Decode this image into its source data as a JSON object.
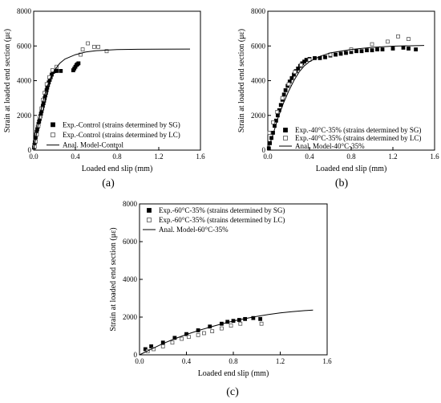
{
  "chart_data": [
    {
      "type": "scatter",
      "panel_label": "(a)",
      "xlabel": "Loaded end slip (mm)",
      "ylabel": "Strain at loaded end section (με)",
      "xlim": [
        0,
        1.6
      ],
      "ylim": [
        0,
        8000
      ],
      "x_ticks": [
        "0.0",
        "0.4",
        "0.8",
        "1.2",
        "1.6"
      ],
      "y_ticks": [
        "0",
        "2000",
        "4000",
        "6000",
        "8000"
      ],
      "legend_position": "bottom-right",
      "series": [
        {
          "name": "Exp.-Control (strains determined by SG)",
          "marker": "filled-square",
          "points": [
            [
              0.003,
              150
            ],
            [
              0.007,
              300
            ],
            [
              0.011,
              450
            ],
            [
              0.015,
              600
            ],
            [
              0.019,
              750
            ],
            [
              0.024,
              900
            ],
            [
              0.029,
              1050
            ],
            [
              0.034,
              1200
            ],
            [
              0.04,
              1350
            ],
            [
              0.046,
              1500
            ],
            [
              0.052,
              1650
            ],
            [
              0.058,
              1800
            ],
            [
              0.064,
              1950
            ],
            [
              0.07,
              2100
            ],
            [
              0.076,
              2250
            ],
            [
              0.082,
              2400
            ],
            [
              0.088,
              2550
            ],
            [
              0.094,
              2700
            ],
            [
              0.1,
              2850
            ],
            [
              0.106,
              3000
            ],
            [
              0.112,
              3150
            ],
            [
              0.118,
              3300
            ],
            [
              0.124,
              3450
            ],
            [
              0.13,
              3600
            ],
            [
              0.137,
              3750
            ],
            [
              0.145,
              3900
            ],
            [
              0.154,
              4050
            ],
            [
              0.163,
              4200
            ],
            [
              0.173,
              4350
            ],
            [
              0.185,
              4500
            ],
            [
              0.2,
              4550
            ],
            [
              0.22,
              4560
            ],
            [
              0.26,
              4560
            ],
            [
              0.38,
              4600
            ],
            [
              0.39,
              4700
            ],
            [
              0.4,
              4800
            ],
            [
              0.41,
              4900
            ],
            [
              0.42,
              4950
            ],
            [
              0.43,
              5000
            ]
          ]
        },
        {
          "name": "Exp.-Control (strains determined by LC)",
          "marker": "open-square",
          "points": [
            [
              0.01,
              200
            ],
            [
              0.02,
              500
            ],
            [
              0.03,
              900
            ],
            [
              0.045,
              1400
            ],
            [
              0.06,
              1900
            ],
            [
              0.075,
              2400
            ],
            [
              0.09,
              2900
            ],
            [
              0.105,
              3300
            ],
            [
              0.125,
              3800
            ],
            [
              0.15,
              4200
            ],
            [
              0.18,
              4600
            ],
            [
              0.22,
              4800
            ],
            [
              0.45,
              5500
            ],
            [
              0.47,
              5800
            ],
            [
              0.52,
              6150
            ],
            [
              0.58,
              5950
            ],
            [
              0.62,
              5950
            ],
            [
              0.7,
              5700
            ]
          ]
        },
        {
          "name": "Anal. Model-Control",
          "marker": "line",
          "points": [
            [
              0,
              0
            ],
            [
              0.02,
              700
            ],
            [
              0.05,
              1700
            ],
            [
              0.08,
              2600
            ],
            [
              0.12,
              3500
            ],
            [
              0.16,
              4150
            ],
            [
              0.2,
              4600
            ],
            [
              0.25,
              5000
            ],
            [
              0.3,
              5250
            ],
            [
              0.4,
              5500
            ],
            [
              0.5,
              5650
            ],
            [
              0.6,
              5730
            ],
            [
              0.8,
              5790
            ],
            [
              1.0,
              5810
            ],
            [
              1.2,
              5815
            ],
            [
              1.5,
              5820
            ]
          ]
        }
      ]
    },
    {
      "type": "scatter",
      "panel_label": "(b)",
      "xlabel": "Loaded end slip (mm)",
      "ylabel": "Strain at loaded end section (με)",
      "xlim": [
        0,
        1.6
      ],
      "ylim": [
        0,
        8000
      ],
      "x_ticks": [
        "0.0",
        "0.4",
        "0.8",
        "1.2",
        "1.6"
      ],
      "y_ticks": [
        "0",
        "2000",
        "4000",
        "6000",
        "8000"
      ],
      "legend_position": "bottom-right",
      "series": [
        {
          "name": "Exp.-40°C-35% (strains determined by SG)",
          "marker": "filled-square",
          "points": [
            [
              0.01,
              100
            ],
            [
              0.02,
              400
            ],
            [
              0.035,
              700
            ],
            [
              0.05,
              1000
            ],
            [
              0.065,
              1400
            ],
            [
              0.08,
              1700
            ],
            [
              0.095,
              2000
            ],
            [
              0.11,
              2300
            ],
            [
              0.125,
              2600
            ],
            [
              0.14,
              2900
            ],
            [
              0.155,
              3200
            ],
            [
              0.17,
              3450
            ],
            [
              0.19,
              3700
            ],
            [
              0.21,
              3950
            ],
            [
              0.23,
              4150
            ],
            [
              0.25,
              4350
            ],
            [
              0.27,
              4550
            ],
            [
              0.29,
              4700
            ],
            [
              0.31,
              4850
            ],
            [
              0.33,
              5000
            ],
            [
              0.35,
              5100
            ],
            [
              0.37,
              5200
            ],
            [
              0.4,
              5250
            ],
            [
              0.45,
              5300
            ],
            [
              0.5,
              5300
            ],
            [
              0.55,
              5350
            ],
            [
              0.6,
              5450
            ],
            [
              0.65,
              5500
            ],
            [
              0.7,
              5550
            ],
            [
              0.75,
              5600
            ],
            [
              0.8,
              5650
            ],
            [
              0.85,
              5700
            ],
            [
              0.9,
              5700
            ],
            [
              0.95,
              5750
            ],
            [
              1.0,
              5750
            ],
            [
              1.05,
              5800
            ],
            [
              1.1,
              5800
            ],
            [
              1.2,
              5850
            ],
            [
              1.3,
              5900
            ],
            [
              1.35,
              5850
            ],
            [
              1.42,
              5800
            ]
          ]
        },
        {
          "name": "Exp.-40°C-35% (strains determined by LC)",
          "marker": "open-square",
          "points": [
            [
              0.015,
              1000
            ],
            [
              0.05,
              1600
            ],
            [
              0.09,
              2200
            ],
            [
              0.14,
              3000
            ],
            [
              0.2,
              3800
            ],
            [
              0.26,
              4500
            ],
            [
              0.32,
              4900
            ],
            [
              0.4,
              5200
            ],
            [
              0.6,
              5500
            ],
            [
              0.8,
              5800
            ],
            [
              1.0,
              6100
            ],
            [
              1.15,
              6250
            ],
            [
              1.25,
              6550
            ],
            [
              1.35,
              6400
            ]
          ]
        },
        {
          "name": "Anal. Model-40°C-35%",
          "marker": "line",
          "points": [
            [
              0,
              0
            ],
            [
              0.05,
              900
            ],
            [
              0.1,
              1900
            ],
            [
              0.15,
              2700
            ],
            [
              0.2,
              3400
            ],
            [
              0.25,
              4000
            ],
            [
              0.3,
              4500
            ],
            [
              0.35,
              4850
            ],
            [
              0.4,
              5100
            ],
            [
              0.5,
              5400
            ],
            [
              0.6,
              5600
            ],
            [
              0.8,
              5800
            ],
            [
              1.0,
              5920
            ],
            [
              1.2,
              5990
            ],
            [
              1.5,
              6030
            ]
          ]
        }
      ]
    },
    {
      "type": "scatter",
      "panel_label": "(c)",
      "xlabel": "Loaded end slip (mm)",
      "ylabel": "Strain at loaded end section (με)",
      "xlim": [
        0,
        1.6
      ],
      "ylim": [
        0,
        8000
      ],
      "x_ticks": [
        "0.0",
        "0.4",
        "0.8",
        "1.2",
        "1.6"
      ],
      "y_ticks": [
        "0",
        "2000",
        "4000",
        "6000",
        "8000"
      ],
      "legend_position": "top-left",
      "series": [
        {
          "name": "Exp.-60°C-35% (strains determined by SG)",
          "marker": "filled-square",
          "points": [
            [
              0.05,
              300
            ],
            [
              0.1,
              450
            ],
            [
              0.2,
              650
            ],
            [
              0.3,
              900
            ],
            [
              0.4,
              1100
            ],
            [
              0.5,
              1300
            ],
            [
              0.6,
              1500
            ],
            [
              0.7,
              1650
            ],
            [
              0.75,
              1750
            ],
            [
              0.8,
              1800
            ],
            [
              0.85,
              1850
            ],
            [
              0.9,
              1900
            ],
            [
              0.97,
              1950
            ],
            [
              1.03,
              1900
            ]
          ]
        },
        {
          "name": "Exp.-60°C-35% (strains determined by LC)",
          "marker": "open-square",
          "points": [
            [
              0.07,
              200
            ],
            [
              0.12,
              300
            ],
            [
              0.2,
              450
            ],
            [
              0.28,
              650
            ],
            [
              0.36,
              850
            ],
            [
              0.42,
              950
            ],
            [
              0.5,
              1050
            ],
            [
              0.55,
              1150
            ],
            [
              0.62,
              1250
            ],
            [
              0.7,
              1400
            ],
            [
              0.78,
              1550
            ],
            [
              0.86,
              1650
            ],
            [
              1.04,
              1650
            ]
          ]
        },
        {
          "name": "Anal. Model-60°C-35%",
          "marker": "line",
          "points": [
            [
              0,
              0
            ],
            [
              0.1,
              300
            ],
            [
              0.2,
              600
            ],
            [
              0.3,
              850
            ],
            [
              0.4,
              1080
            ],
            [
              0.5,
              1280
            ],
            [
              0.6,
              1470
            ],
            [
              0.7,
              1640
            ],
            [
              0.8,
              1790
            ],
            [
              0.9,
              1920
            ],
            [
              1.0,
              2040
            ],
            [
              1.1,
              2140
            ],
            [
              1.2,
              2220
            ],
            [
              1.3,
              2290
            ],
            [
              1.4,
              2340
            ],
            [
              1.48,
              2370
            ]
          ]
        }
      ]
    }
  ]
}
